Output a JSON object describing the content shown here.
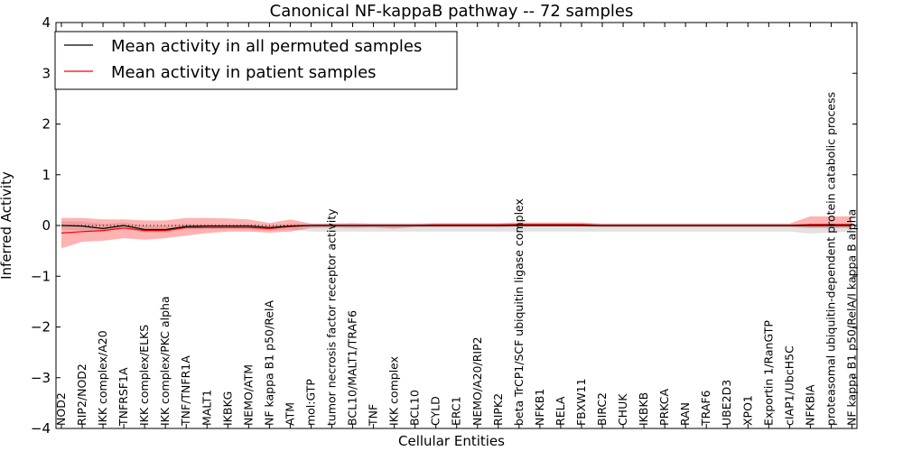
{
  "chart_data": {
    "type": "line",
    "title": "Canonical NF-kappaB pathway -- 72 samples",
    "xlabel": "Cellular Entities",
    "ylabel": "Inferred Activity",
    "ylim": [
      -4,
      4
    ],
    "yticks": [
      -4,
      -3,
      -2,
      -1,
      0,
      1,
      2,
      3,
      4
    ],
    "ytick_labels": [
      "−4",
      "−3",
      "−2",
      "−1",
      "0",
      "1",
      "2",
      "3",
      "4"
    ],
    "grid": false,
    "legend_position": "top-left",
    "categories": [
      "NOD2",
      "RIP2/NOD2",
      "IKK complex/A20",
      "TNFRSF1A",
      "IKK complex/ELKS",
      "IKK complex/PKC alpha",
      "TNF/TNFR1A",
      "MALT1",
      "IKBKG",
      "NEMO/ATM",
      "NF kappa B1 p50/RelA",
      "ATM",
      "mol:GTP",
      "tumor necrosis factor receptor activity",
      "BCL10/MALT1/TRAF6",
      "TNF",
      "IKK complex",
      "BCL10",
      "CYLD",
      "ERC1",
      "NEMO/A20/RIP2",
      "RIPK2",
      "beta TrCP1/SCF ubiquitin ligase complex",
      "NFKB1",
      "RELA",
      "FBXW11",
      "BIRC2",
      "CHUK",
      "IKBKB",
      "PRKCA",
      "RAN",
      "TRAF6",
      "UBE2D3",
      "XPO1",
      "Exportin 1/RanGTP",
      "cIAP1/UbcH5C",
      "NFKBIA",
      "proteasomal ubiquitin-dependent protein catabolic process",
      "NF kappa B1 p50/RelA/I kappa B alpha"
    ],
    "series": [
      {
        "name": "Mean activity in all permuted samples",
        "color": "#000000",
        "values": [
          0.0,
          -0.01,
          -0.06,
          0.0,
          -0.08,
          -0.08,
          -0.02,
          -0.01,
          -0.01,
          -0.01,
          -0.04,
          -0.01,
          0.0,
          0.0,
          0.0,
          0.0,
          0.0,
          0.0,
          0.0,
          0.0,
          0.0,
          0.0,
          0.0,
          0.0,
          0.0,
          0.0,
          0.0,
          0.0,
          0.0,
          0.0,
          0.0,
          0.0,
          0.0,
          0.0,
          0.0,
          0.0,
          0.0,
          0.0,
          0.0
        ],
        "band_lower": [
          -0.08,
          -0.1,
          -0.12,
          -0.06,
          -0.13,
          -0.14,
          -0.07,
          -0.06,
          -0.06,
          -0.06,
          -0.1,
          -0.08,
          -0.12,
          -0.12,
          -0.12,
          -0.12,
          -0.12,
          -0.12,
          -0.12,
          -0.12,
          -0.12,
          -0.12,
          -0.12,
          -0.12,
          -0.12,
          -0.12,
          -0.12,
          -0.12,
          -0.12,
          -0.12,
          -0.12,
          -0.12,
          -0.12,
          -0.12,
          -0.12,
          -0.12,
          -0.16,
          -0.14,
          -0.12
        ],
        "band_upper": [
          0.08,
          0.08,
          0.03,
          0.06,
          0.0,
          0.0,
          0.03,
          0.03,
          0.03,
          0.03,
          0.0,
          0.04,
          0.03,
          0.03,
          0.03,
          0.03,
          0.03,
          0.03,
          0.03,
          0.03,
          0.03,
          0.03,
          0.03,
          0.03,
          0.03,
          0.03,
          0.03,
          0.03,
          0.03,
          0.03,
          0.03,
          0.03,
          0.03,
          0.03,
          0.03,
          0.03,
          0.03,
          0.03,
          0.03
        ]
      },
      {
        "name": "Mean activity in patient samples",
        "color": "#ff0000",
        "values": [
          -0.15,
          -0.12,
          -0.1,
          -0.05,
          -0.1,
          -0.1,
          -0.04,
          -0.04,
          -0.04,
          -0.04,
          -0.06,
          -0.02,
          0.0,
          0.0,
          0.0,
          0.0,
          0.0,
          0.0,
          0.01,
          0.01,
          0.01,
          0.01,
          0.02,
          0.02,
          0.02,
          0.02,
          0.0,
          0.0,
          0.0,
          0.0,
          0.0,
          0.0,
          0.0,
          0.0,
          0.0,
          0.0,
          0.02,
          0.02,
          0.02
        ],
        "band_lower": [
          -0.45,
          -0.32,
          -0.3,
          -0.25,
          -0.28,
          -0.25,
          -0.2,
          -0.15,
          -0.12,
          -0.12,
          -0.14,
          -0.12,
          -0.05,
          -0.04,
          -0.05,
          -0.04,
          -0.06,
          -0.03,
          -0.03,
          -0.03,
          -0.03,
          -0.03,
          -0.02,
          -0.02,
          -0.02,
          -0.02,
          -0.03,
          -0.03,
          -0.03,
          -0.03,
          -0.03,
          -0.03,
          -0.03,
          -0.03,
          -0.03,
          -0.03,
          -0.05,
          -0.05,
          -0.05
        ],
        "band_upper": [
          0.15,
          0.15,
          0.12,
          0.12,
          0.1,
          0.1,
          0.15,
          0.15,
          0.14,
          0.12,
          0.05,
          0.12,
          0.04,
          0.04,
          0.05,
          0.04,
          0.04,
          0.04,
          0.05,
          0.05,
          0.05,
          0.05,
          0.06,
          0.06,
          0.06,
          0.06,
          0.04,
          0.04,
          0.04,
          0.04,
          0.04,
          0.04,
          0.04,
          0.04,
          0.04,
          0.04,
          0.18,
          0.18,
          0.18
        ]
      }
    ]
  }
}
